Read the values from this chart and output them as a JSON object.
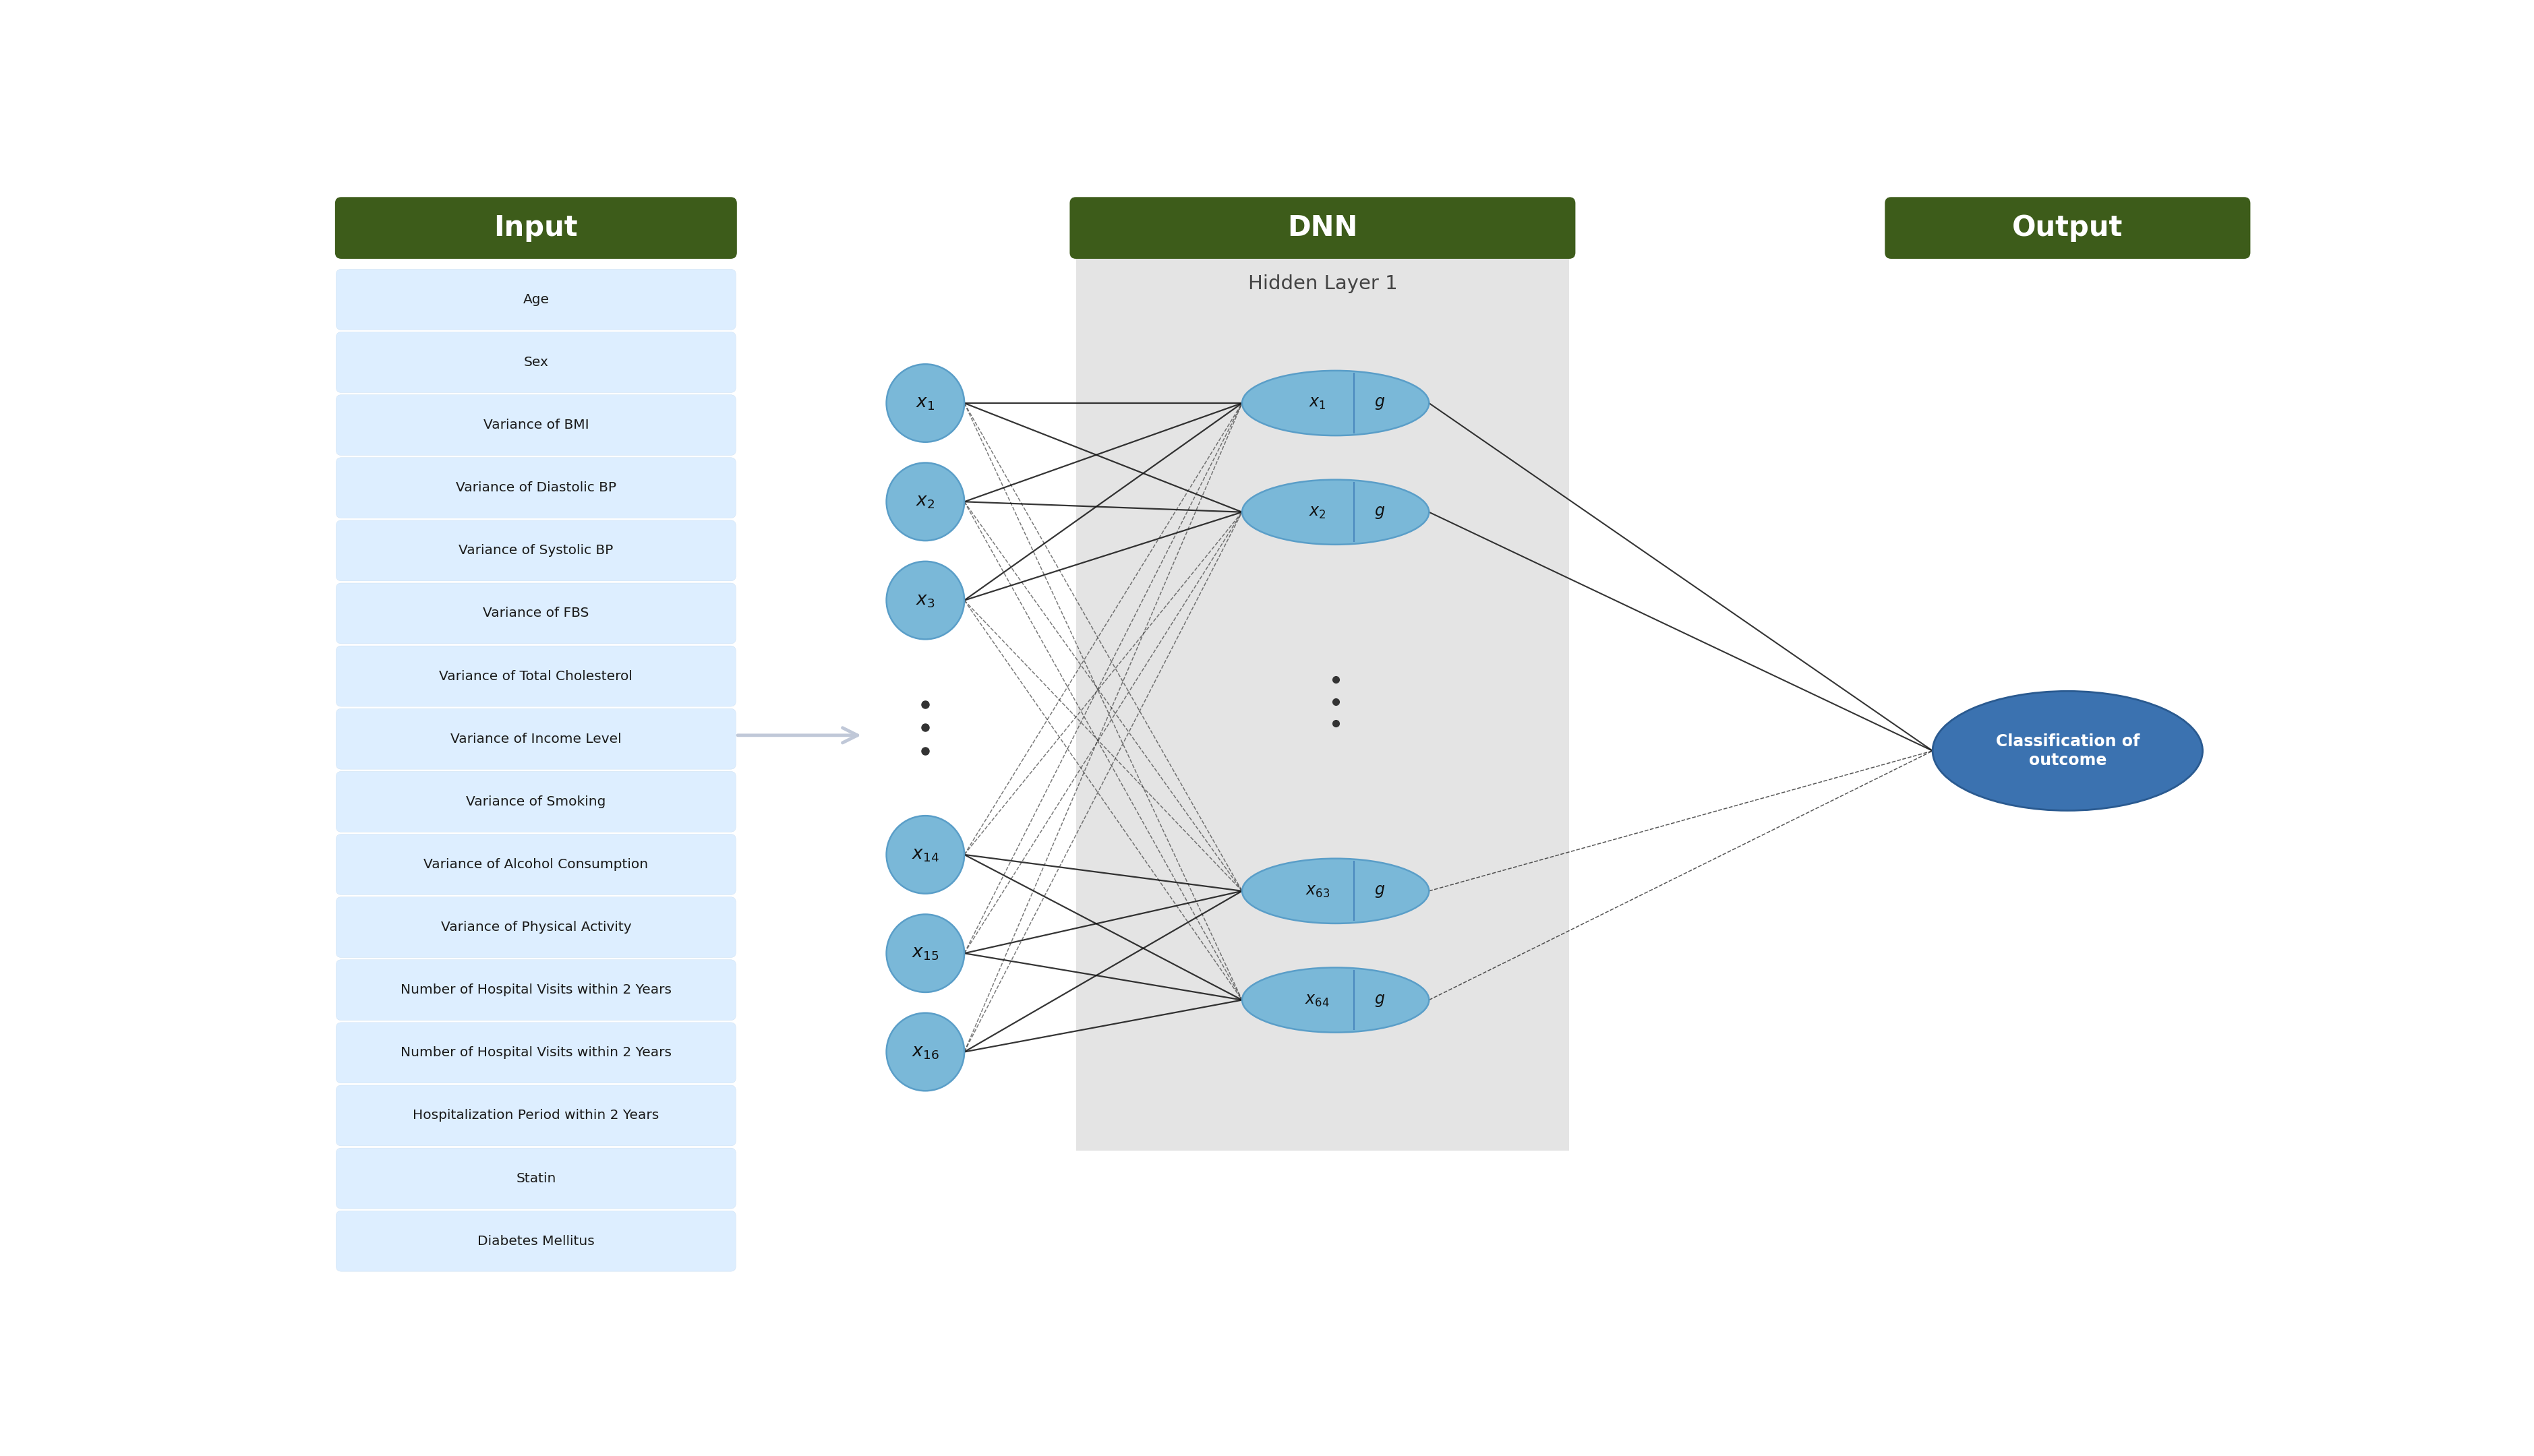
{
  "fig_width": 37.58,
  "fig_height": 21.6,
  "bg_color": "#ffffff",
  "header_bg": "#3d5c1a",
  "header_text_color": "#ffffff",
  "input_box_bg": "#ddeeff",
  "input_box_edge": "#c8ddf0",
  "input_labels": [
    "Age",
    "Sex",
    "Variance of BMI",
    "Variance of Diastolic BP",
    "Variance of Systolic BP",
    "Variance of FBS",
    "Variance of Total Cholesterol",
    "Variance of Income Level",
    "Variance of Smoking",
    "Variance of Alcohol Consumption",
    "Variance of Physical Activity",
    "Number of Hospital Visits within 2 Years",
    "Number of Hospital Visits within 2 Years",
    "Hospitalization Period within 2 Years",
    "Statin",
    "Diabetes Mellitus"
  ],
  "node_color": "#7ab8d8",
  "node_edge_color": "#5a9ec8",
  "hidden_bg": "#e4e4e4",
  "output_node_color": "#3b72b0",
  "output_node_edge": "#2a5a90",
  "output_text_color": "#ffffff",
  "header_input_text": "Input",
  "header_dnn_text": "DNN",
  "header_output_text": "Output",
  "hidden_layer_text": "Hidden Layer 1",
  "output_label": "Classification of\noutcome",
  "input_nodes": [
    "$x_1$",
    "$x_2$",
    "$x_3$",
    "$x_{14}$",
    "$x_{15}$",
    "$x_{16}$"
  ],
  "hidden_nodes_left": [
    "$x_1$",
    "$x_2$",
    "$x_{63}$",
    "$x_{64}$"
  ],
  "hidden_nodes_right": [
    "$g$",
    "$g$",
    "$g$",
    "$g$"
  ],
  "g_label": "$g$",
  "arrow_color": "#c0c8d8",
  "line_color": "#222222",
  "dot_color": "#333333"
}
